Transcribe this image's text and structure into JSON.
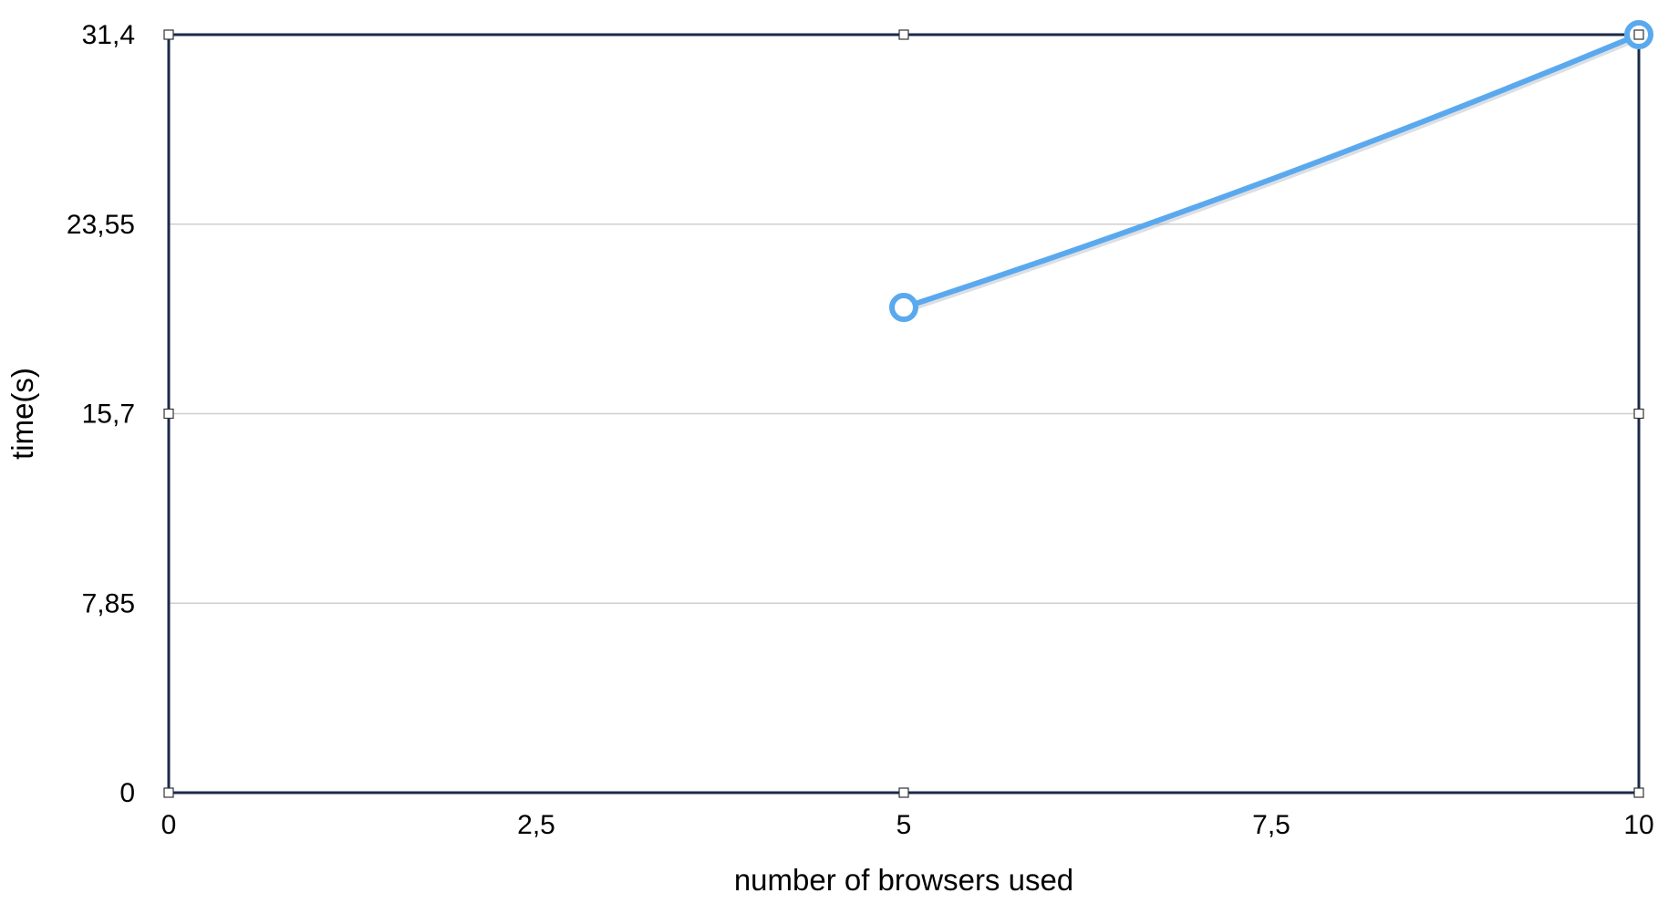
{
  "chart_data": {
    "type": "line",
    "title": "",
    "xlabel": "number of browsers used",
    "ylabel": "time(s)",
    "xlim": [
      0,
      10
    ],
    "ylim": [
      0,
      31.4
    ],
    "x_ticks": [
      0,
      2.5,
      5,
      7.5,
      10
    ],
    "x_tick_labels": [
      "0",
      "2,5",
      "5",
      "7,5",
      "10"
    ],
    "y_ticks": [
      0,
      7.85,
      15.7,
      23.55,
      31.4
    ],
    "y_tick_labels": [
      "0",
      "7,85",
      "15,7",
      "23,55",
      "31,4"
    ],
    "grid": "horizontal",
    "series": [
      {
        "x": [
          5,
          10
        ],
        "values": [
          20.1,
          31.4
        ]
      }
    ],
    "colors": {
      "line": "#5aa9ef",
      "frame": "#1b2a4a",
      "grid": "#cfcfcf"
    }
  }
}
